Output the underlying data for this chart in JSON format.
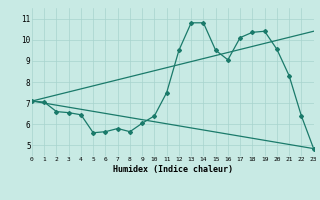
{
  "title": "",
  "xlabel": "Humidex (Indice chaleur)",
  "ylabel": "",
  "bg_color": "#c8eae4",
  "grid_color": "#a8d4ce",
  "line_color": "#1a7a6a",
  "xlim": [
    0,
    23
  ],
  "ylim": [
    4.5,
    11.5
  ],
  "xticks": [
    0,
    1,
    2,
    3,
    4,
    5,
    6,
    7,
    8,
    9,
    10,
    11,
    12,
    13,
    14,
    15,
    16,
    17,
    18,
    19,
    20,
    21,
    22,
    23
  ],
  "yticks": [
    5,
    6,
    7,
    8,
    9,
    10,
    11
  ],
  "series1_x": [
    0,
    1,
    2,
    3,
    4,
    5,
    6,
    7,
    8,
    9,
    10,
    11,
    12,
    13,
    14,
    15,
    16,
    17,
    18,
    19,
    20,
    21,
    22,
    23
  ],
  "series1_y": [
    7.1,
    7.05,
    6.6,
    6.55,
    6.45,
    5.6,
    5.65,
    5.8,
    5.65,
    6.05,
    6.4,
    7.5,
    9.5,
    10.8,
    10.8,
    9.5,
    9.05,
    10.1,
    10.35,
    10.4,
    9.55,
    8.3,
    6.4,
    4.85
  ],
  "series2_x": [
    0,
    23
  ],
  "series2_y": [
    7.1,
    10.4
  ],
  "series3_x": [
    0,
    23
  ],
  "series3_y": [
    7.1,
    4.85
  ],
  "marker": "D",
  "markersize": 2,
  "linewidth": 0.9
}
